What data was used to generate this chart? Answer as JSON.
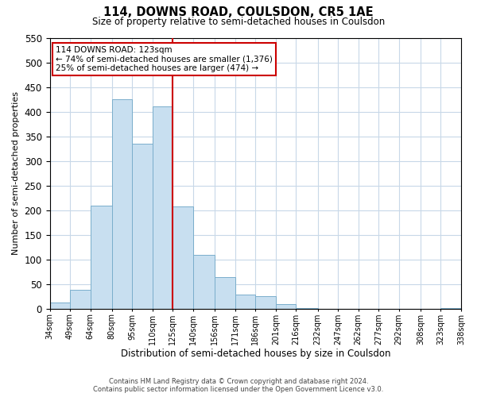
{
  "title": "114, DOWNS ROAD, COULSDON, CR5 1AE",
  "subtitle": "Size of property relative to semi-detached houses in Coulsdon",
  "xlabel": "Distribution of semi-detached houses by size in Coulsdon",
  "ylabel": "Number of semi-detached properties",
  "footer_line1": "Contains HM Land Registry data © Crown copyright and database right 2024.",
  "footer_line2": "Contains public sector information licensed under the Open Government Licence v3.0.",
  "annotation_title": "114 DOWNS ROAD: 123sqm",
  "annotation_line1": "← 74% of semi-detached houses are smaller (1,376)",
  "annotation_line2": "25% of semi-detached houses are larger (474) →",
  "property_line_x": 125,
  "bin_edges": [
    34,
    49,
    64,
    80,
    95,
    110,
    125,
    140,
    156,
    171,
    186,
    201,
    216,
    232,
    247,
    262,
    277,
    292,
    308,
    323,
    338
  ],
  "bin_counts": [
    13,
    38,
    210,
    425,
    335,
    410,
    207,
    110,
    65,
    29,
    26,
    9,
    2,
    0,
    0,
    0,
    0,
    0,
    0,
    2
  ],
  "bar_color": "#c8dff0",
  "bar_edge_color": "#7aaecc",
  "property_line_color": "#cc0000",
  "annotation_box_edge_color": "#cc0000",
  "grid_color": "#c8d8e8",
  "ylim": [
    0,
    550
  ],
  "tick_labels": [
    "34sqm",
    "49sqm",
    "64sqm",
    "80sqm",
    "95sqm",
    "110sqm",
    "125sqm",
    "140sqm",
    "156sqm",
    "171sqm",
    "186sqm",
    "201sqm",
    "216sqm",
    "232sqm",
    "247sqm",
    "262sqm",
    "277sqm",
    "292sqm",
    "308sqm",
    "323sqm",
    "338sqm"
  ]
}
